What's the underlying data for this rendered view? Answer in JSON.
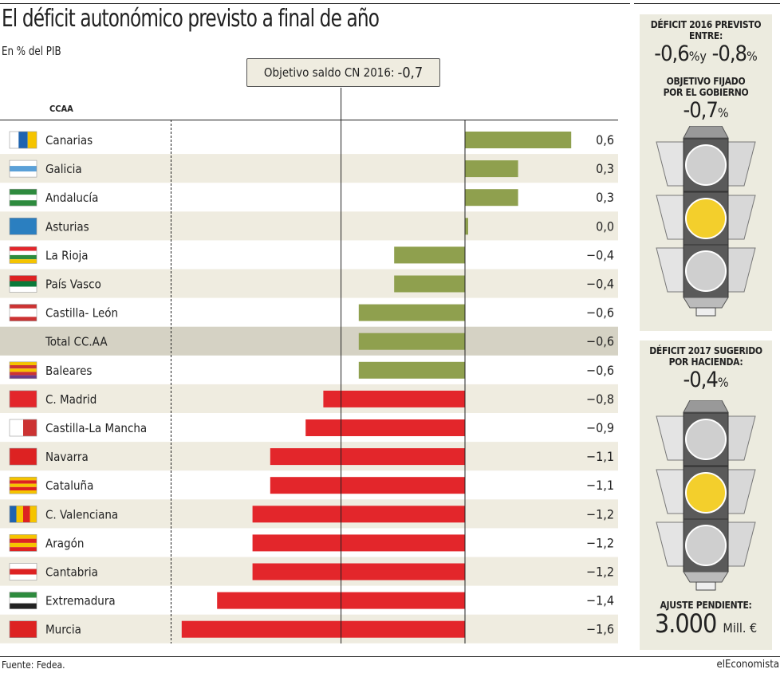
{
  "title": "El déficit autonómico previsto a final de año",
  "subtitle": "En % del PIB",
  "target_label": "Objetivo saldo CN 2016:",
  "target_value": "-0,7",
  "column_header": "CCAA",
  "chart_data": {
    "type": "bar",
    "orientation": "horizontal",
    "title": "El déficit autonómico previsto a final de año",
    "subtitle": "En % del PIB",
    "reference_line": {
      "value": -0.7,
      "label": "Objetivo saldo CN 2016: -0,7"
    },
    "categories": [
      "Canarias",
      "Galicia",
      "Andalucía",
      "Asturias",
      "La Rioja",
      "País Vasco",
      "Castilla- León",
      "Total CC.AA",
      "Baleares",
      "C. Madrid",
      "Castilla-La Mancha",
      "Navarra",
      "Cataluña",
      "C. Valenciana",
      "Aragón",
      "Cantabria",
      "Extremadura",
      "Murcia"
    ],
    "values": [
      0.6,
      0.3,
      0.3,
      0.0,
      -0.4,
      -0.4,
      -0.6,
      -0.6,
      -0.6,
      -0.8,
      -0.9,
      -1.1,
      -1.1,
      -1.2,
      -1.2,
      -1.2,
      -1.4,
      -1.6
    ],
    "value_labels": [
      "0,6",
      "0,3",
      "0,3",
      "0,0",
      "−0,4",
      "−0,4",
      "−0,6",
      "−0,6",
      "−0,6",
      "−0,8",
      "−0,9",
      "−1,1",
      "−1,1",
      "−1,2",
      "−1,2",
      "−1,2",
      "−1,4",
      "−1,6"
    ],
    "colors": {
      "above_target": "#8fa04e",
      "below_target": "#e3262b",
      "row_alt": "#efece0",
      "total_row": "#d5d2c4"
    },
    "xlim": [
      -1.7,
      0.7
    ],
    "grid": false,
    "legend": "none"
  },
  "panel1": {
    "heading": "DÉFICIT 2016 PREVISTO ENTRE:",
    "value_a": "-0,6",
    "value_b": "-0,8",
    "pct": "%",
    "y": "y",
    "heading2": "OBJETIVO FIJADO POR EL GOBIERNO",
    "value2": "-0,7",
    "light": "yellow"
  },
  "panel2": {
    "heading": "DÉFICIT 2017 SUGERIDO POR HACIENDA:",
    "value": "-0,4",
    "pct": "%",
    "light": "yellow",
    "heading2": "AJUSTE PENDIENTE:",
    "value2": "3.000",
    "unit": "Mill. €"
  },
  "footer": {
    "source": "Fuente: Fedea.",
    "brand": "elEconomista"
  }
}
